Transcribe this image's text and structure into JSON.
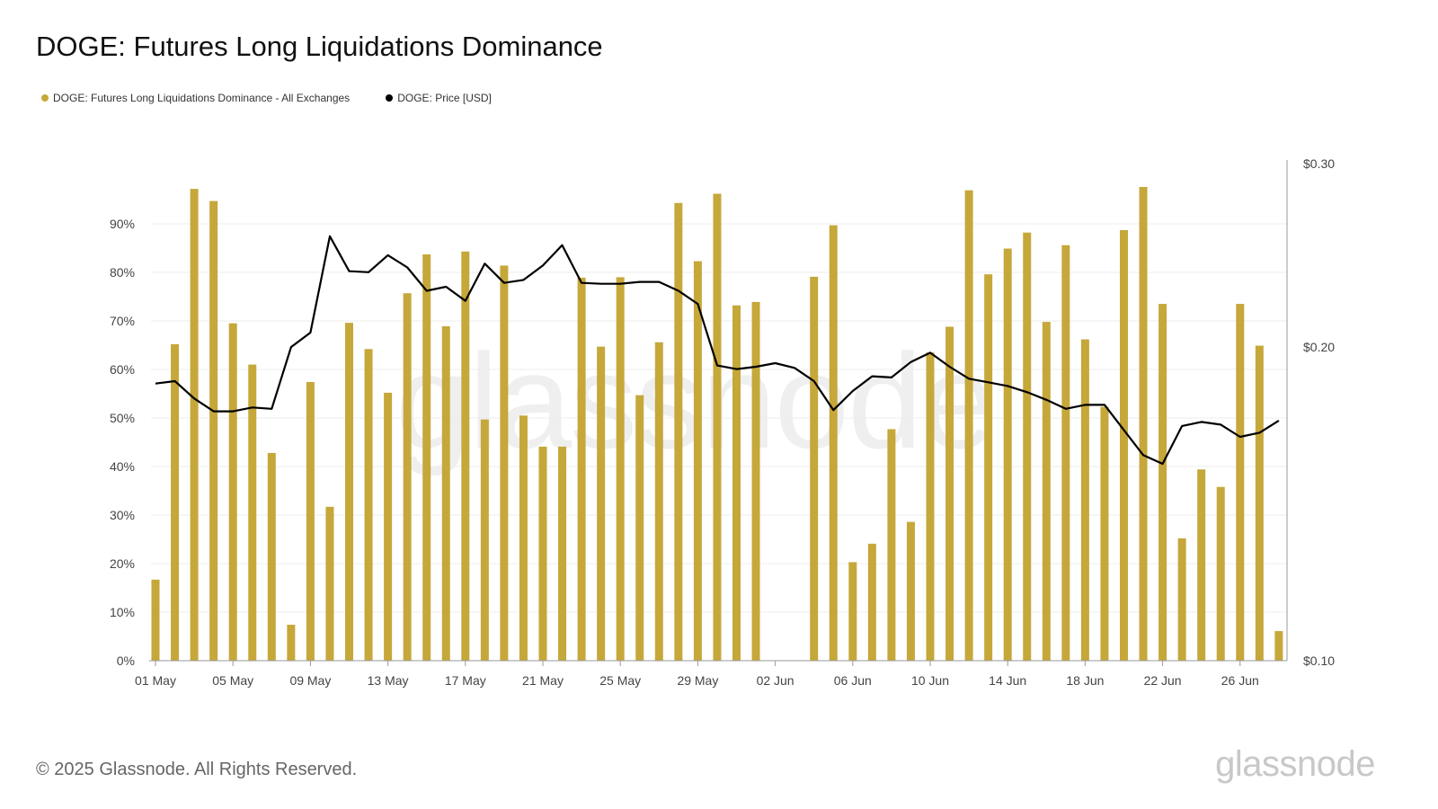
{
  "title": "DOGE: Futures Long Liquidations Dominance",
  "footer": "© 2025 Glassnode. All Rights Reserved.",
  "logo": "glassnode",
  "watermark": "glassnode",
  "colors": {
    "bar": "#C6A73A",
    "price": "#000000",
    "grid": "#eeeeee",
    "axis": "#999999"
  },
  "chart_data": {
    "type": "bar",
    "series": [
      {
        "name": "DOGE: Futures Long Liquidations Dominance - All Exchanges",
        "kind": "bar",
        "axis": "left",
        "color": "#C6A73A",
        "values": [
          16.7,
          65.2,
          97.2,
          94.7,
          69.5,
          61.0,
          42.8,
          7.4,
          57.4,
          31.7,
          69.6,
          64.2,
          55.2,
          75.7,
          83.7,
          68.9,
          84.3,
          49.7,
          81.4,
          50.5,
          44.1,
          44.1,
          78.9,
          64.7,
          79.0,
          54.7,
          65.6,
          94.3,
          82.3,
          96.2,
          73.2,
          73.9,
          0,
          0,
          79.1,
          89.7,
          20.3,
          24.1,
          47.7,
          28.6,
          63.5,
          68.8,
          96.9,
          79.6,
          84.9,
          88.2,
          69.8,
          85.6,
          66.2,
          52.3,
          88.7,
          97.6,
          73.5,
          25.2,
          39.4,
          35.8,
          73.5,
          64.9,
          6.1
        ]
      },
      {
        "name": "DOGE: Price [USD]",
        "kind": "line",
        "axis": "right",
        "color": "#000000",
        "values": [
          0.1845,
          0.1855,
          0.1785,
          0.1735,
          0.1735,
          0.175,
          0.1745,
          0.2,
          0.2065,
          0.2555,
          0.2365,
          0.236,
          0.245,
          0.2385,
          0.2265,
          0.2285,
          0.2215,
          0.2405,
          0.2305,
          0.232,
          0.2395,
          0.2505,
          0.2305,
          0.23,
          0.23,
          0.231,
          0.231,
          0.2265,
          0.22,
          0.192,
          0.1905,
          0.1915,
          0.193,
          0.191,
          0.1855,
          0.174,
          0.1815,
          0.1875,
          0.187,
          0.1935,
          0.1975,
          0.1915,
          0.1865,
          0.185,
          0.1835,
          0.181,
          0.178,
          0.1745,
          0.176,
          0.176,
          0.1665,
          0.1575,
          0.1545,
          0.168,
          0.1695,
          0.1685,
          0.164,
          0.1655,
          0.17
        ]
      }
    ],
    "x_tick_labels": [
      "01 May",
      "05 May",
      "09 May",
      "13 May",
      "17 May",
      "21 May",
      "25 May",
      "29 May",
      "02 Jun",
      "06 Jun",
      "10 Jun",
      "14 Jun",
      "18 Jun",
      "22 Jun",
      "26 Jun"
    ],
    "left_axis": {
      "ticks": [
        0,
        10,
        20,
        30,
        40,
        50,
        60,
        70,
        80,
        90
      ],
      "labels": [
        "0%",
        "10%",
        "20%",
        "30%",
        "40%",
        "50%",
        "60%",
        "70%",
        "80%",
        "90%"
      ],
      "range": [
        0,
        100
      ]
    },
    "right_axis": {
      "ticks": [
        0.1,
        0.2,
        0.3
      ],
      "labels": [
        "$0.10",
        "$0.20",
        "$0.30"
      ],
      "scale": "log",
      "range": [
        0.1,
        0.3
      ]
    },
    "grid": true,
    "legend_position": "top-left"
  }
}
